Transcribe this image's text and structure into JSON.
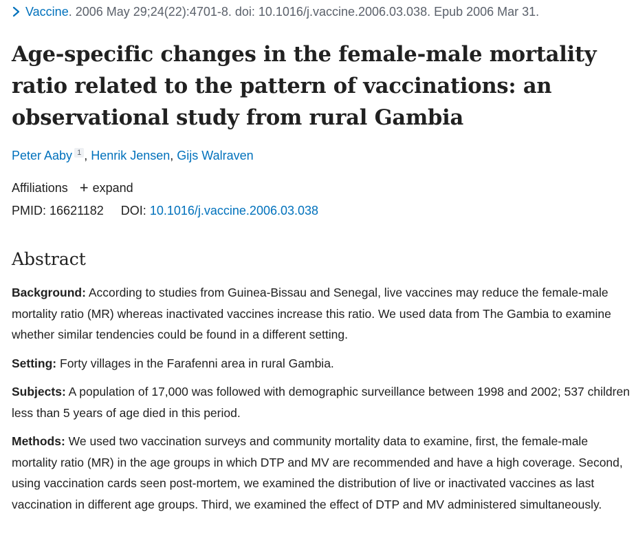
{
  "citation": {
    "journal": "Vaccine",
    "details": ". 2006 May 29;24(22):4701-8. doi: 10.1016/j.vaccine.2006.03.038. Epub 2006 Mar 31.",
    "chevron_icon": "chevron-right-icon"
  },
  "article": {
    "title": "Age-specific changes in the female-male mortality ratio related to the pattern of vaccinations: an observational study from rural Gambia",
    "authors": [
      {
        "name": "Peter Aaby",
        "affiliation_number": "1"
      },
      {
        "name": "Henrik Jensen"
      },
      {
        "name": "Gijs Walraven"
      }
    ],
    "author_separator": ", ",
    "affiliations_label": "Affiliations",
    "expand_label": "expand",
    "expand_icon": "plus-icon",
    "pmid_label": "PMID:",
    "pmid": "16621182",
    "doi_label": "DOI:",
    "doi": "10.1016/j.vaccine.2006.03.038"
  },
  "abstract": {
    "heading": "Abstract",
    "sections": [
      {
        "label": "Background:",
        "text": " According to studies from Guinea-Bissau and Senegal, live vaccines may reduce the female-male mortality ratio (MR) whereas inactivated vaccines increase this ratio. We used data from The Gambia to examine whether similar tendencies could be found in a different setting."
      },
      {
        "label": "Setting:",
        "text": " Forty villages in the Farafenni area in rural Gambia."
      },
      {
        "label": "Subjects:",
        "text": " A population of 17,000 was followed with demographic surveillance between 1998 and 2002; 537 children less than 5 years of age died in this period."
      },
      {
        "label": "Methods:",
        "text": " We used two vaccination surveys and community mortality data to examine, first, the female-male mortality ratio (MR) in the age groups in which DTP and MV are recommended and have a high coverage. Second, using vaccination cards seen post-mortem, we examined the distribution of live or inactivated vaccines as last vaccination in different age groups. Third, we examined the effect of DTP and MV administered simultaneously."
      }
    ]
  },
  "colors": {
    "link": "#0071bc",
    "text": "#212121",
    "muted": "#5b616b"
  }
}
